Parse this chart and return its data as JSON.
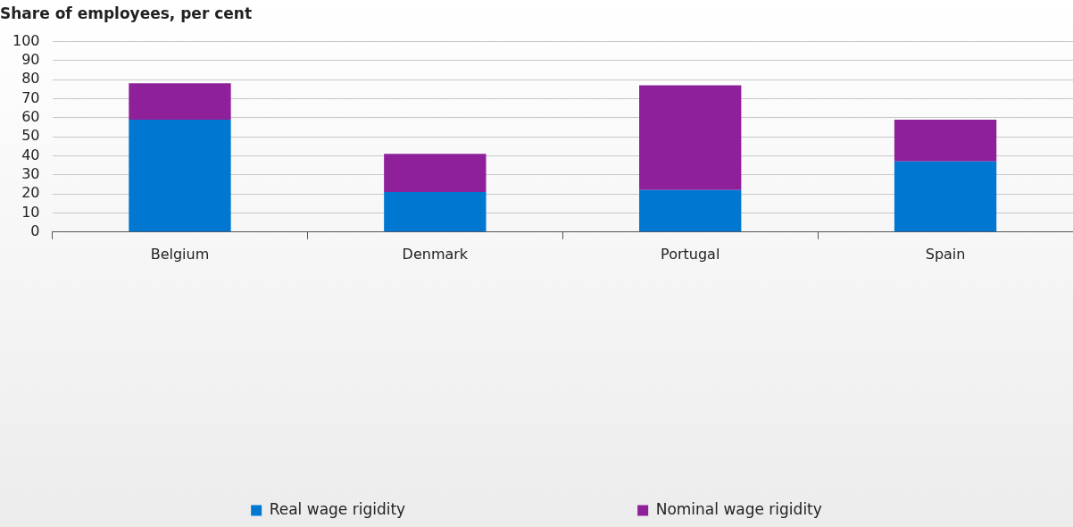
{
  "chart_data": {
    "type": "bar",
    "ylabel": "Share of employees, per cent",
    "categories": [
      "Belgium",
      "Denmark",
      "Portugal",
      "Spain"
    ],
    "stacked": true,
    "series": [
      {
        "name": "Real wage rigidity",
        "color": "#0078d2",
        "values": [
          59,
          21,
          22,
          37
        ]
      },
      {
        "name": "Nominal wage rigidity",
        "color": "#8e209a",
        "values": [
          19,
          20,
          55,
          22
        ]
      }
    ],
    "ylim": [
      0,
      100
    ],
    "yticks": [
      0,
      10,
      20,
      30,
      40,
      50,
      60,
      70,
      80,
      90,
      100
    ],
    "grid": "y",
    "legend": "bottom"
  }
}
